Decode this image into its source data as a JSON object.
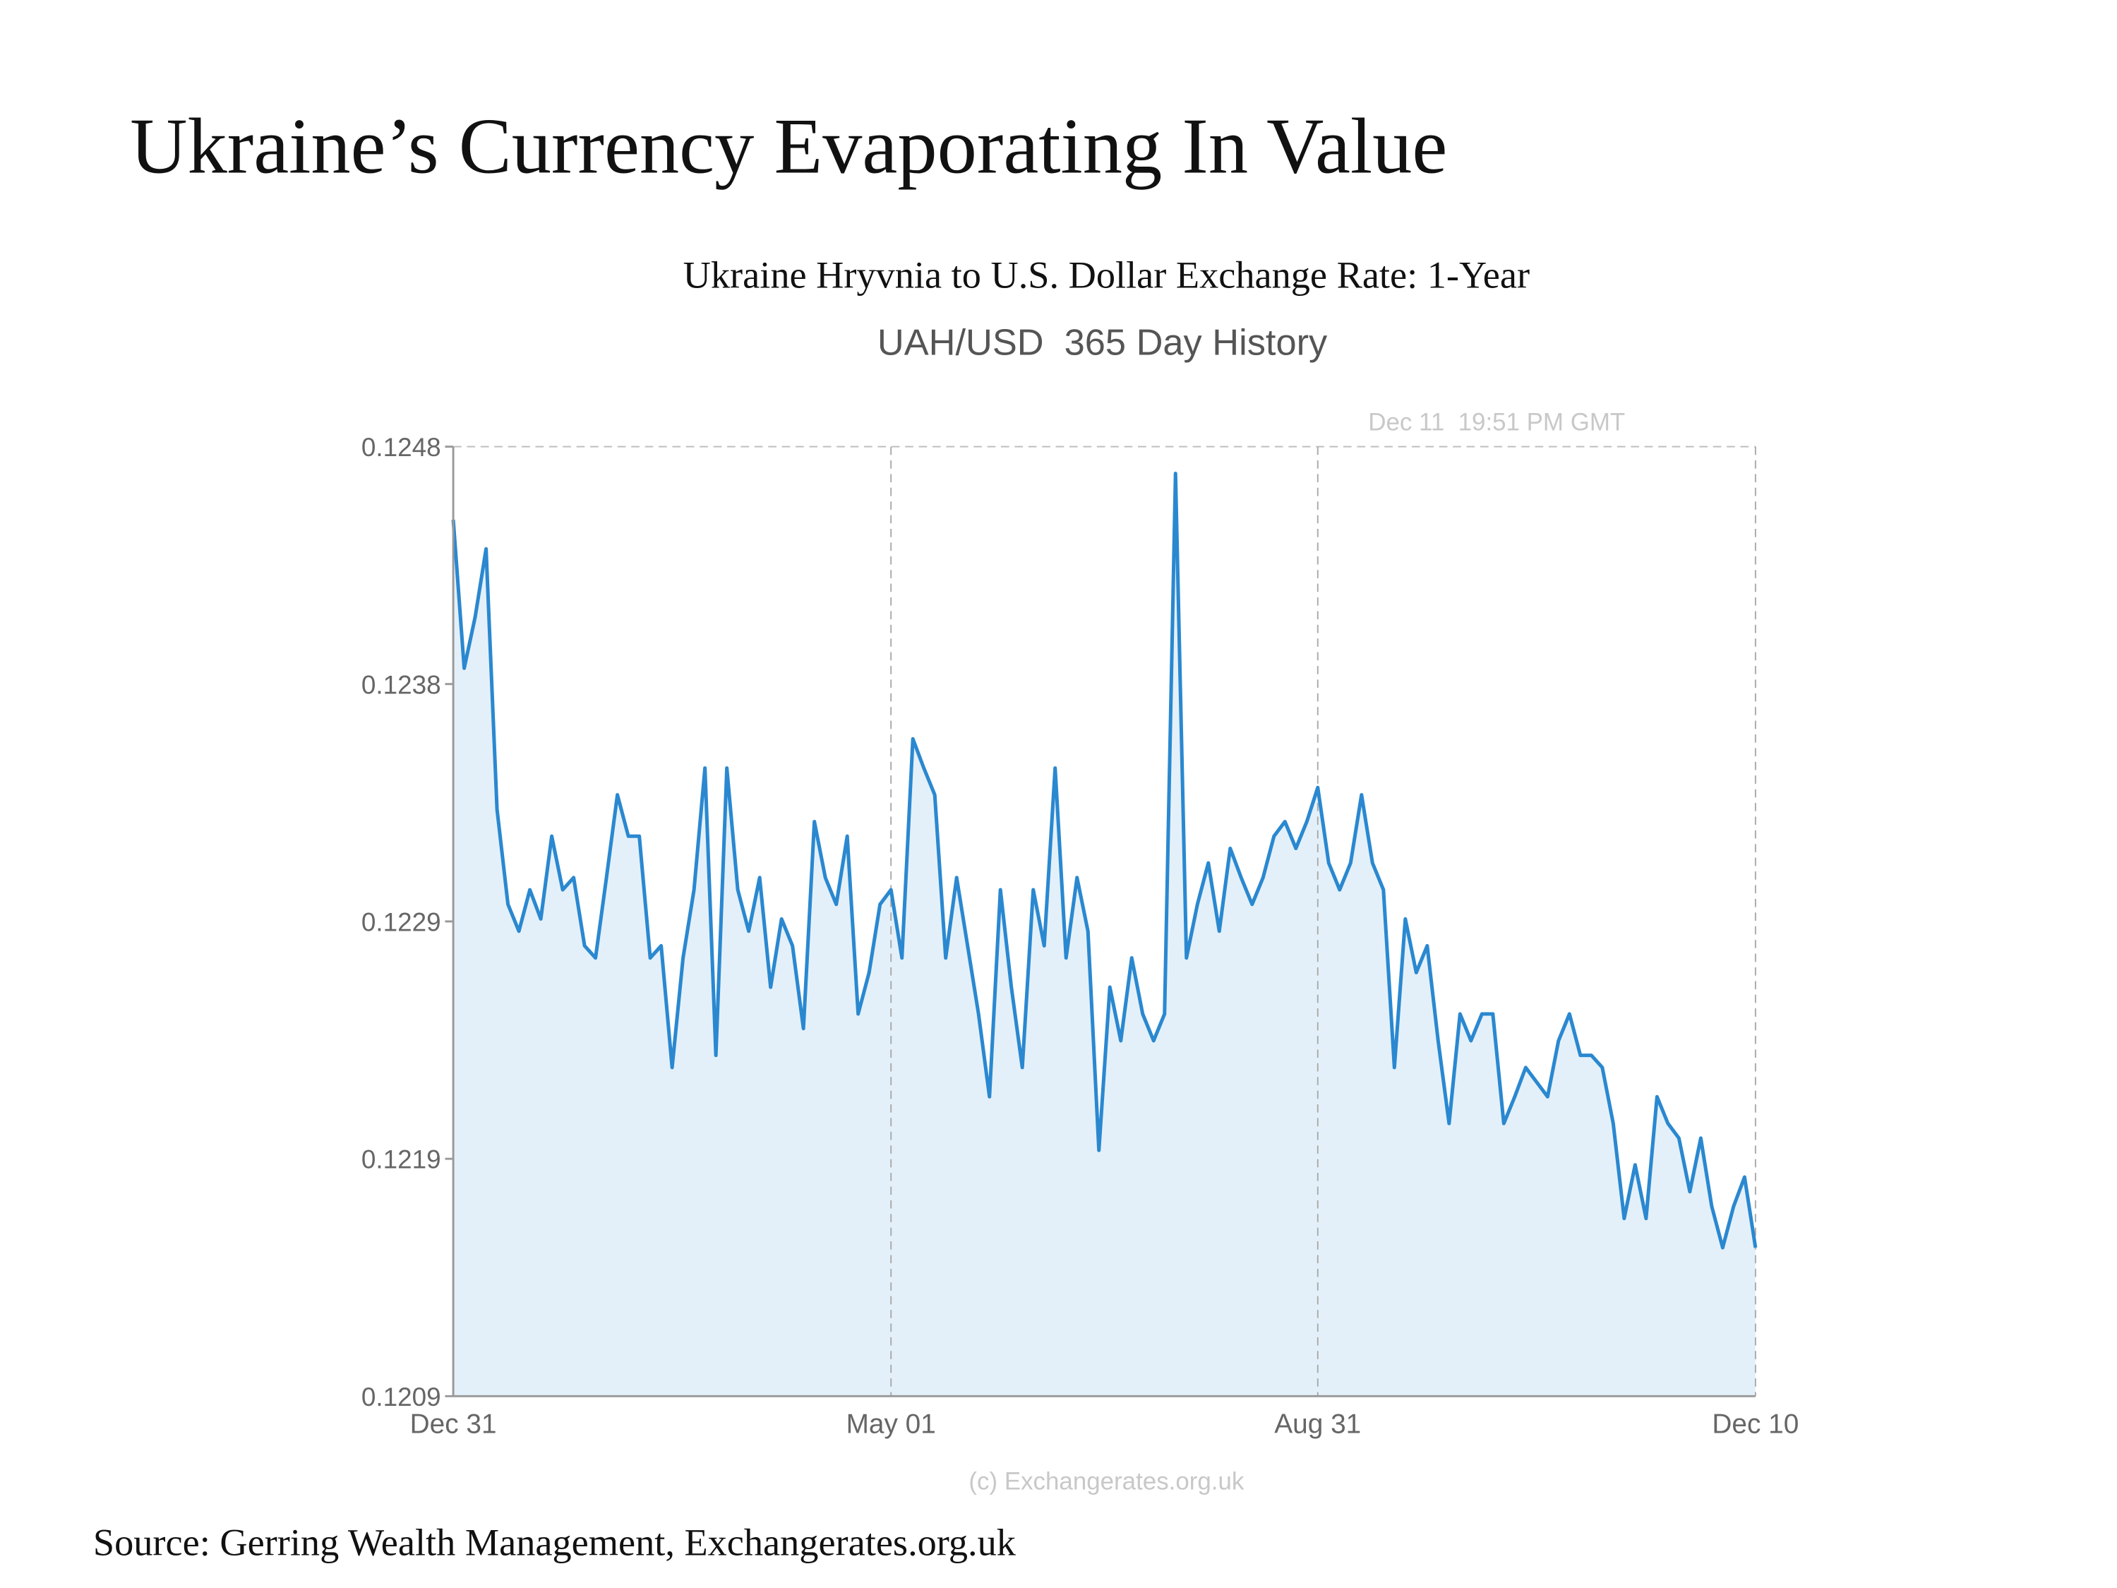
{
  "title": "Ukraine’s Currency Evaporating In Value",
  "subtitle": "Ukraine Hryvnia to U.S. Dollar Exchange Rate: 1-Year",
  "source": "Source: Gerring Wealth Management, Exchangerates.org.uk",
  "chart_data": {
    "type": "area",
    "title": "UAH/USD  365 Day History",
    "timestamp": "Dec 11  19:51 PM GMT",
    "credit": "(c) Exchangerates.org.uk",
    "color": "#2a88d0",
    "fill_color": "#e4f0f9",
    "x_grid": true,
    "categories": [
      "Dec 31",
      null,
      null,
      null,
      null,
      null,
      null,
      null,
      null,
      null,
      null,
      null,
      null,
      null,
      null,
      null,
      null,
      null,
      null,
      null,
      null,
      null,
      null,
      null,
      null,
      null,
      null,
      null,
      null,
      null,
      null,
      null,
      null,
      null,
      null,
      null,
      null,
      null,
      null,
      null,
      "May 01",
      null,
      null,
      null,
      null,
      null,
      null,
      null,
      null,
      null,
      null,
      null,
      null,
      null,
      null,
      null,
      null,
      null,
      null,
      null,
      null,
      null,
      null,
      null,
      null,
      null,
      null,
      null,
      null,
      null,
      null,
      null,
      null,
      null,
      null,
      null,
      null,
      null,
      null,
      "Aug 31",
      null,
      null,
      null,
      null,
      null,
      null,
      null,
      null,
      null,
      null,
      null,
      null,
      null,
      null,
      null,
      null,
      null,
      null,
      null,
      null,
      null,
      null,
      null,
      null,
      null,
      null,
      null,
      null,
      null,
      null,
      null,
      null,
      null,
      null,
      null,
      null,
      null,
      null,
      null,
      "Dec 10"
    ],
    "values": [
      0.1245,
      0.12389,
      0.1241,
      0.12438,
      0.12331,
      0.12292,
      0.12281,
      0.12298,
      0.12286,
      0.1232,
      0.12298,
      0.12303,
      0.12275,
      0.1227,
      0.12303,
      0.12337,
      0.1232,
      0.1232,
      0.1227,
      0.12275,
      0.12225,
      0.1227,
      0.12298,
      0.12348,
      0.1223,
      0.12348,
      0.12298,
      0.12281,
      0.12303,
      0.12258,
      0.12286,
      0.12275,
      0.12241,
      0.12326,
      0.12303,
      0.12292,
      0.1232,
      0.12247,
      0.12264,
      0.12292,
      0.12298,
      0.1227,
      0.1236,
      0.12348,
      0.12337,
      0.1227,
      0.12303,
      0.12275,
      0.12247,
      0.12213,
      0.12298,
      0.12258,
      0.12225,
      0.12298,
      0.12275,
      0.12348,
      0.1227,
      0.12303,
      0.12281,
      0.12191,
      0.12258,
      0.12236,
      0.1227,
      0.12247,
      0.12236,
      0.12247,
      0.12469,
      0.1227,
      0.12292,
      0.12309,
      0.12281,
      0.12315,
      0.12303,
      0.12292,
      0.12303,
      0.1232,
      0.12326,
      0.12315,
      0.12326,
      0.1234,
      0.12309,
      0.12298,
      0.12309,
      0.12337,
      0.12309,
      0.12298,
      0.12225,
      0.12286,
      0.12264,
      0.12275,
      0.12236,
      0.12202,
      0.12247,
      0.12236,
      0.12247,
      0.12247,
      0.12202,
      0.12213,
      0.12225,
      0.12219,
      0.12213,
      0.12236,
      0.12247,
      0.1223,
      0.1223,
      0.12225,
      0.12202,
      0.12163,
      0.12185,
      0.12163,
      0.12213,
      0.12202,
      0.12196,
      0.12174,
      0.12196,
      0.12168,
      0.12151,
      0.12168,
      0.1218,
      0.12151
    ],
    "ylim": [
      0.1209,
      0.1248
    ],
    "yticks": [
      0.1248,
      {
        "value": 0.123825,
        "label": "0.1238"
      },
      {
        "value": 0.12285,
        "label": "0.1229"
      },
      {
        "value": 0.121875,
        "label": "0.1219"
      },
      0.1209
    ]
  }
}
